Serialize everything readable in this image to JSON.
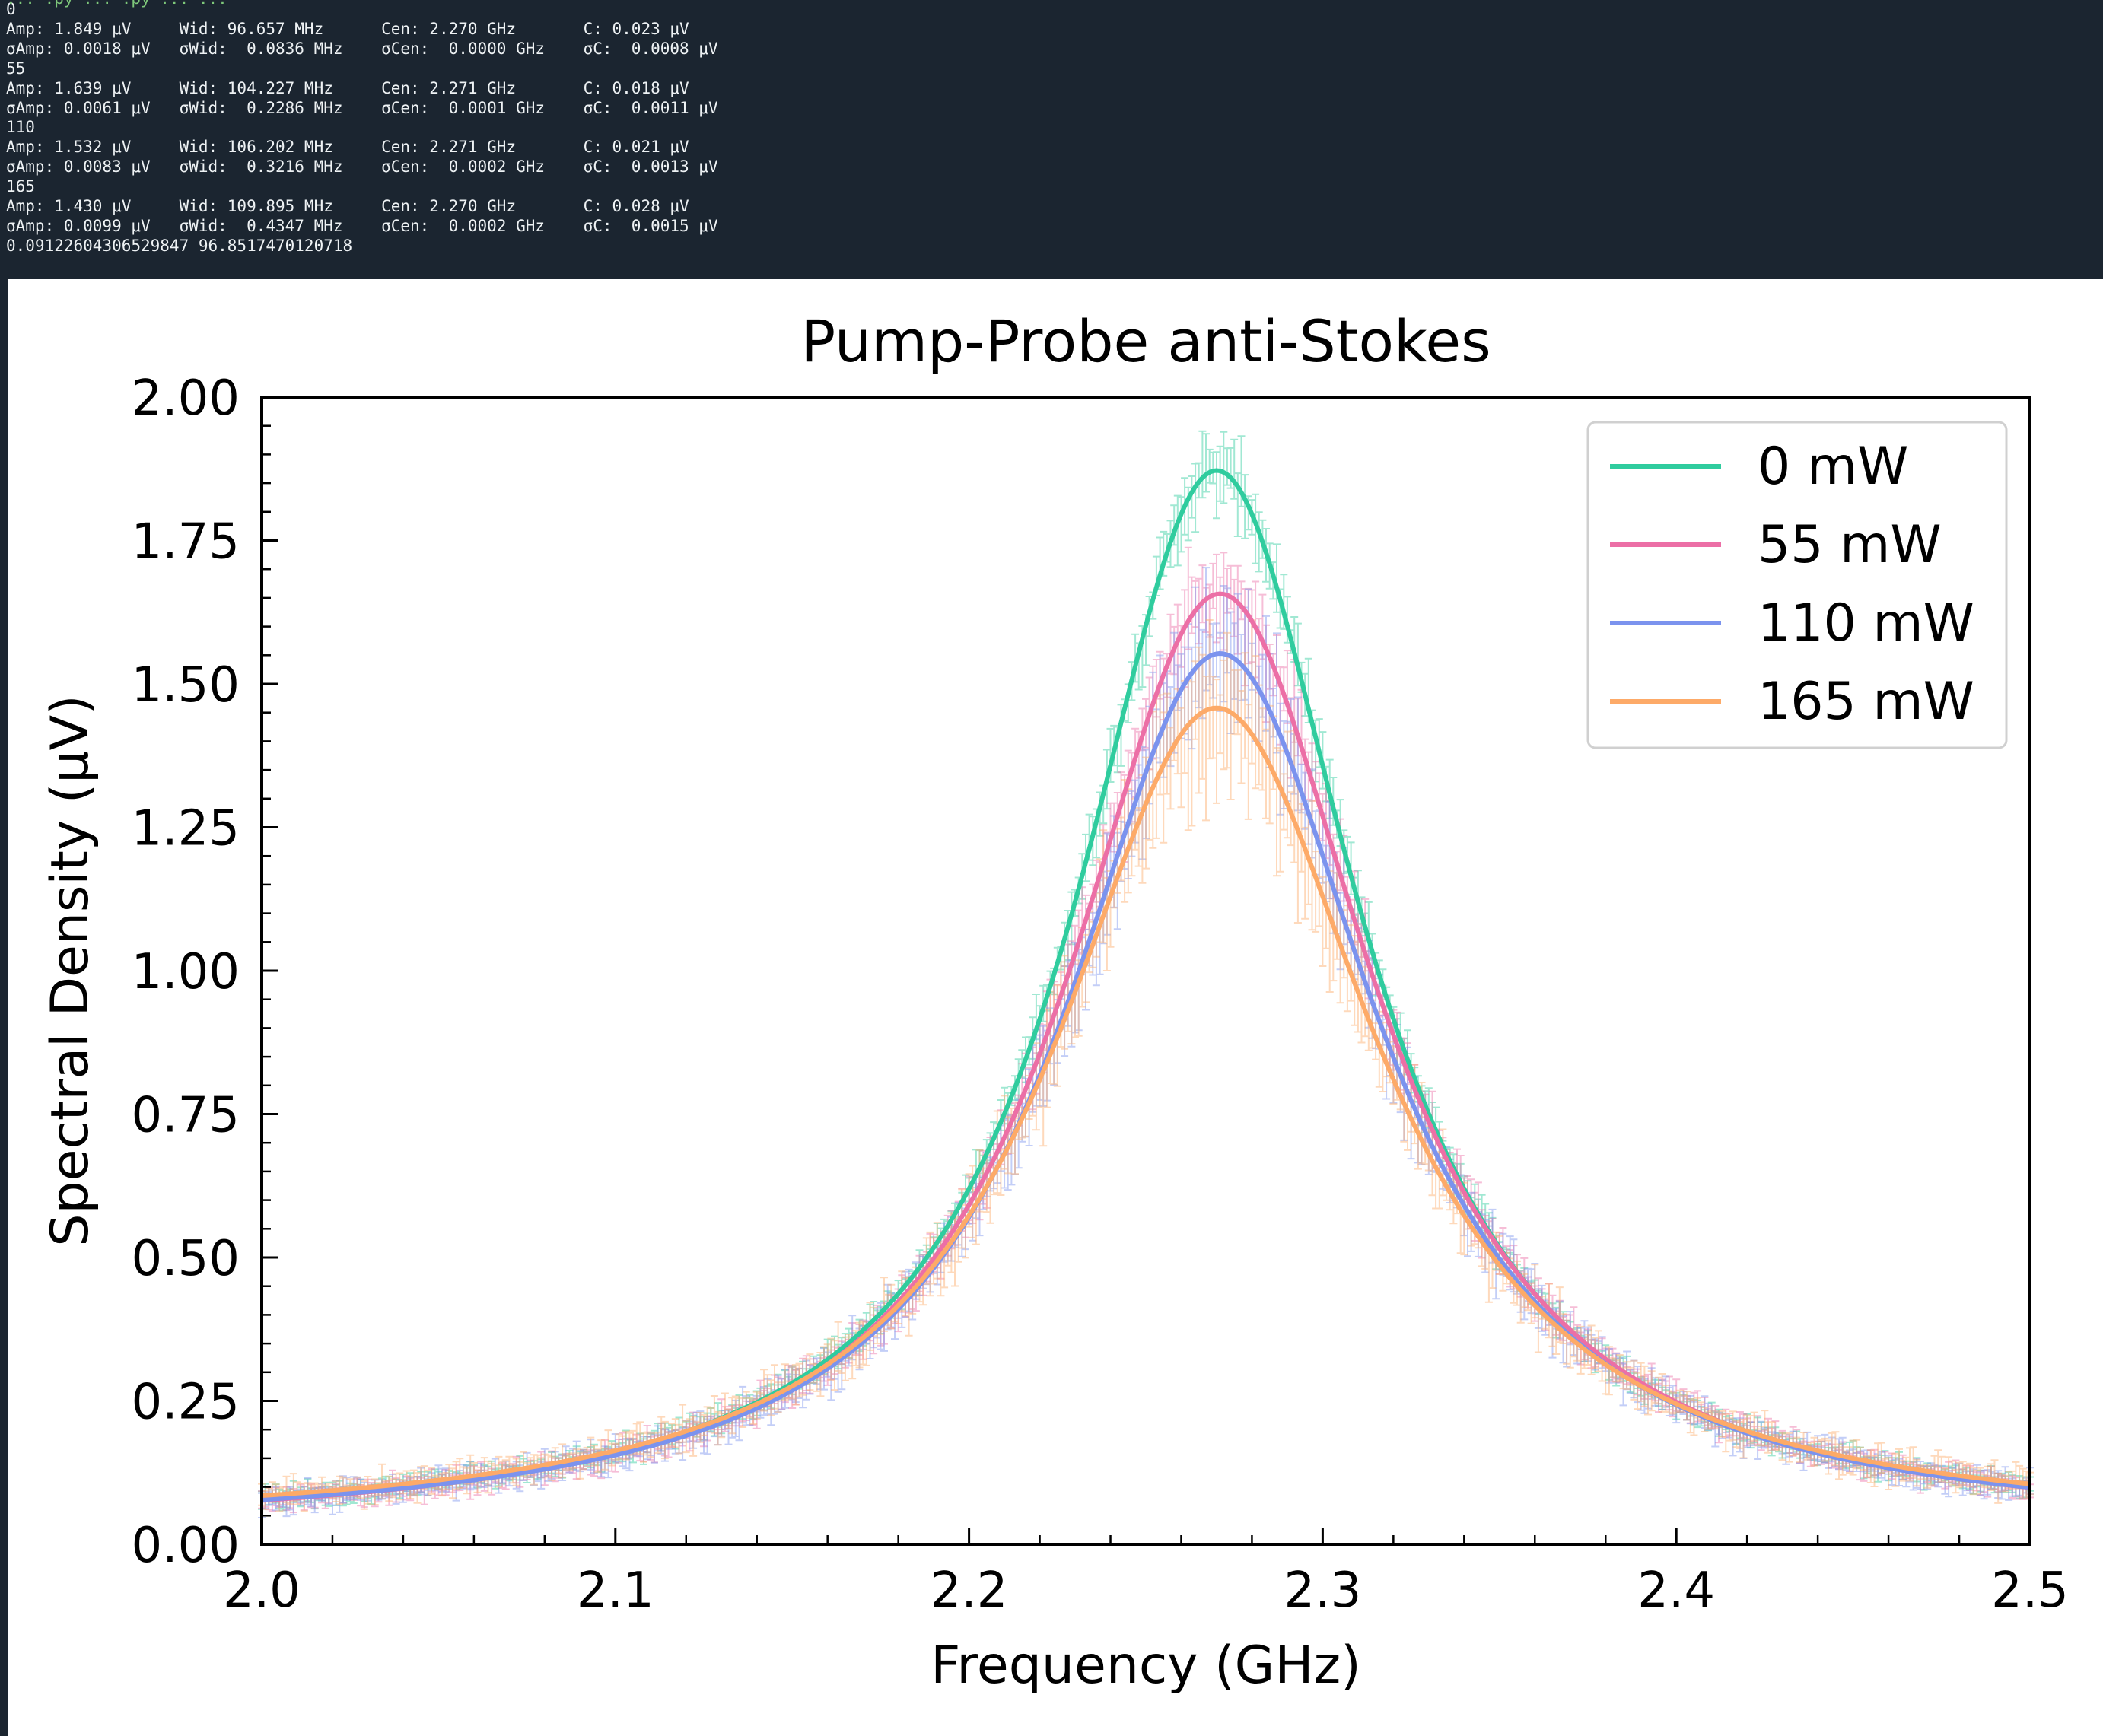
{
  "console": {
    "command_fragment": "... .py ... .py ... ...",
    "lines": [
      "0",
      "Amp: 1.849 μV     Wid: 96.657 MHz      Cen: 2.270 GHz       C: 0.023 μV",
      "σAmp: 0.0018 μV   σWid:  0.0836 MHz    σCen:  0.0000 GHz    σC:  0.0008 μV",
      "55",
      "Amp: 1.639 μV     Wid: 104.227 MHz     Cen: 2.271 GHz       C: 0.018 μV",
      "σAmp: 0.0061 μV   σWid:  0.2286 MHz    σCen:  0.0001 GHz    σC:  0.0011 μV",
      "110",
      "Amp: 1.532 μV     Wid: 106.202 MHz     Cen: 2.271 GHz       C: 0.021 μV",
      "σAmp: 0.0083 μV   σWid:  0.3216 MHz    σCen:  0.0002 GHz    σC:  0.0013 μV",
      "165",
      "Amp: 1.430 μV     Wid: 109.895 MHz     Cen: 2.270 GHz       C: 0.028 μV",
      "σAmp: 0.0099 μV   σWid:  0.4347 MHz    σCen:  0.0002 GHz    σC:  0.0015 μV",
      "0.09122604306529847 96.8517470120718"
    ]
  },
  "chart_data": {
    "type": "line",
    "title": "Pump-Probe anti-Stokes",
    "xlabel": "Frequency (GHz)",
    "ylabel": "Spectral Density (μV)",
    "xlim": [
      2.0,
      2.5
    ],
    "ylim": [
      0.0,
      2.0
    ],
    "xticks": [
      "2.0",
      "2.1",
      "2.2",
      "2.3",
      "2.4",
      "2.5"
    ],
    "yticks": [
      "0.00",
      "0.25",
      "0.50",
      "0.75",
      "1.00",
      "1.25",
      "1.50",
      "1.75",
      "2.00"
    ],
    "grid": false,
    "legend_position": "top-right",
    "series": [
      {
        "name": "0 mW",
        "color": "#2fcc9e",
        "amp": 1.849,
        "width_mhz": 96.657,
        "center_ghz": 2.27,
        "offset": 0.023
      },
      {
        "name": "55 mW",
        "color": "#ec6fa6",
        "amp": 1.639,
        "width_mhz": 104.227,
        "center_ghz": 2.271,
        "offset": 0.018
      },
      {
        "name": "110 mW",
        "color": "#7b93ee",
        "amp": 1.532,
        "width_mhz": 106.202,
        "center_ghz": 2.271,
        "offset": 0.021
      },
      {
        "name": "165 mW",
        "color": "#fdaa68",
        "amp": 1.43,
        "width_mhz": 109.895,
        "center_ghz": 2.27,
        "offset": 0.028
      }
    ]
  }
}
